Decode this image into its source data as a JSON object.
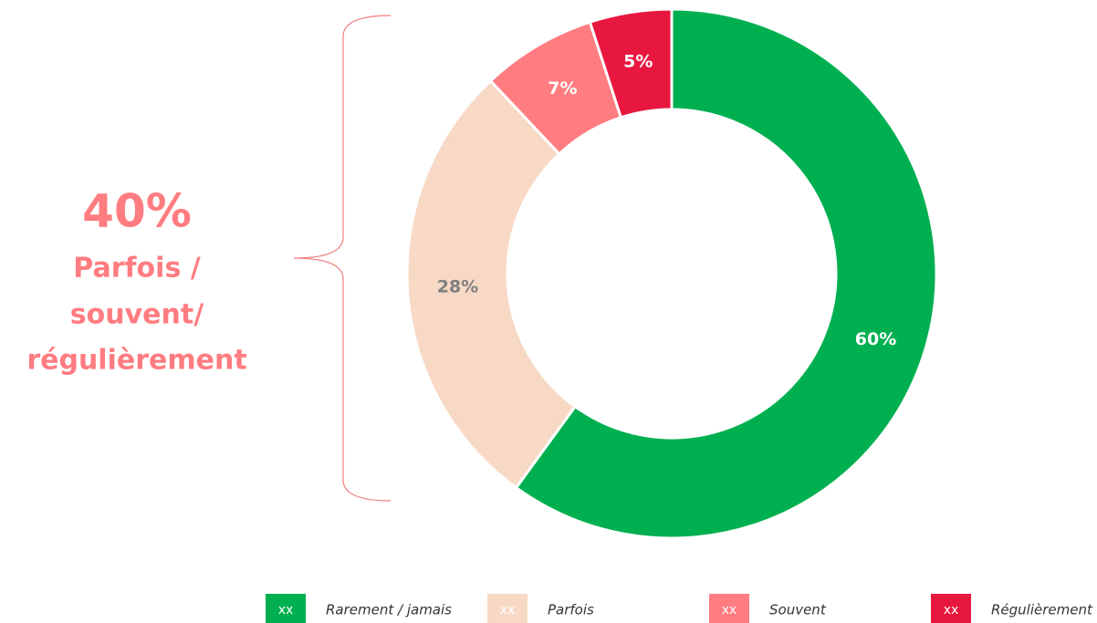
{
  "chart_data": {
    "type": "donut",
    "categories": [
      "Rarement / jamais",
      "Parfois",
      "Souvent",
      "Régulièrement"
    ],
    "values": [
      60,
      28,
      7,
      5
    ],
    "value_labels": [
      "60%",
      "28%",
      "7%",
      "5%"
    ],
    "colors": [
      "#00b050",
      "#f8d9c6",
      "#ff7c80",
      "#e8173f"
    ],
    "label_colors": [
      "#ffffff",
      "#7f7f7f",
      "#ffffff",
      "#ffffff"
    ],
    "legend_marker_labels": [
      "xx",
      "xx",
      "xx",
      "xx"
    ],
    "legend": "bottom",
    "annotation": [
      "40%",
      "Parfois /",
      "souvent/",
      "régulièrement"
    ]
  }
}
